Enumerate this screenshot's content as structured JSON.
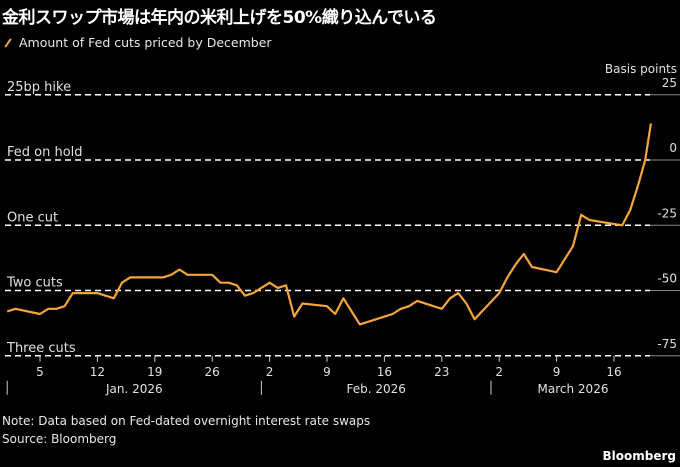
{
  "title": "金利スワップ市場は年内の米利上げを50%織り込んでいる",
  "legend": {
    "label": "Amount of Fed cuts priced by December",
    "color": "#f5a53a"
  },
  "notes": {
    "note": "Note: Data based on Fed-dated overnight interest rate swaps",
    "source": "Source: Bloomberg"
  },
  "brand": "Bloomberg",
  "chart_data": {
    "type": "line",
    "title": "金利スワップ市場は年内の米利上げを50%織り込んでいる",
    "ylabel": "Basis points",
    "xlabel": "",
    "x_unit": "days since Jan 1, 2026",
    "ylim": [
      -80,
      27
    ],
    "xlim": [
      0,
      80
    ],
    "y_ticks": [
      25,
      0,
      -25,
      -50,
      -75
    ],
    "y_tick_labels": [
      "25",
      "0",
      "-25",
      "-50",
      "-75"
    ],
    "reference_lines": [
      {
        "value": 25,
        "label": "25bp hike"
      },
      {
        "value": 0,
        "label": "Fed on hold"
      },
      {
        "value": -25,
        "label": "One cut"
      },
      {
        "value": -50,
        "label": "Two cuts"
      },
      {
        "value": -75,
        "label": "Three cuts"
      }
    ],
    "x_ticks": [
      {
        "day": 4,
        "label": "5"
      },
      {
        "day": 11,
        "label": "12"
      },
      {
        "day": 18,
        "label": "19"
      },
      {
        "day": 25,
        "label": "26"
      },
      {
        "day": 32,
        "label": "2"
      },
      {
        "day": 39,
        "label": "9"
      },
      {
        "day": 46,
        "label": "16"
      },
      {
        "day": 53,
        "label": "23"
      },
      {
        "day": 60,
        "label": "2"
      },
      {
        "day": 67,
        "label": "9"
      },
      {
        "day": 74,
        "label": "16"
      }
    ],
    "months": [
      {
        "start": 0,
        "label": "Jan. 2026",
        "center": 15.5
      },
      {
        "start": 31,
        "label": "Feb. 2026",
        "center": 45
      },
      {
        "start": 59,
        "label": "March 2026",
        "center": 69
      }
    ],
    "series": [
      {
        "name": "Amount of Fed cuts priced by December",
        "x": [
          0,
          1,
          4,
          5,
          6,
          7,
          8,
          11,
          12,
          13,
          14,
          15,
          19,
          20,
          21,
          22,
          25,
          26,
          27,
          28,
          29,
          30,
          32,
          33,
          34,
          35,
          36,
          39,
          40,
          41,
          43,
          47,
          48,
          49,
          50,
          53,
          54,
          55,
          56,
          57,
          60,
          61,
          62,
          63,
          64,
          67,
          69,
          70,
          71,
          75,
          76,
          77,
          77.8,
          78.5
        ],
        "values": [
          -58,
          -57,
          -59,
          -57,
          -57,
          -56,
          -51,
          -51,
          -52,
          -53,
          -47,
          -45,
          -45,
          -44,
          -42,
          -44,
          -44,
          -47,
          -47,
          -48,
          -52,
          -51,
          -47,
          -49,
          -48,
          -60,
          -55,
          -56,
          -59,
          -53,
          -63,
          -59,
          -57,
          -56,
          -54,
          -57,
          -53,
          -51,
          -55,
          -61,
          -51,
          -45,
          -40,
          -36,
          -41,
          -43,
          -33,
          -21,
          -23,
          -25,
          -19,
          -9,
          0,
          14
        ]
      }
    ]
  }
}
